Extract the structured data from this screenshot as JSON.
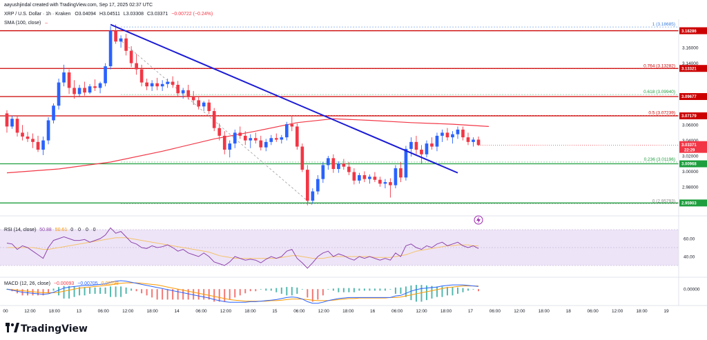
{
  "header": {
    "credit": "aayushjindal created with TradingView.com, Sep 17, 2025 02:37 UTC",
    "symbol": "XRP / U.S. Dollar · 1h · Kraken",
    "open": "O3.04094",
    "high": "H3.04511",
    "low": "L3.03308",
    "close": "C3.03371",
    "change": "−0.00722 (−0.24%)",
    "sma_label": "SMA (100, close)",
    "sma_dot": "–"
  },
  "logo": {
    "text": "TradingView"
  },
  "colors": {
    "up": "#2962ff",
    "down": "#f23645",
    "sma": "#f23645",
    "trend": "#1b1bd6",
    "fib_red": "#cc0000",
    "fib_green": "#1e9e3e",
    "rsi": "#8e44ad",
    "rsi_band": "#e9ddf5",
    "macd_line": "#2962ff",
    "signal_line": "#ff9800"
  },
  "chart_data": [
    {
      "type": "candlestick",
      "interval": "1h",
      "yrange": [
        2.945,
        3.195
      ],
      "y_ticks": [
        2.98,
        3.0,
        3.02,
        3.04,
        3.06,
        3.14,
        3.16
      ],
      "y_tick_labels": [
        "2.98000",
        "3.00000",
        "3.02000",
        "3.04000",
        "3.06000",
        "3.14000",
        "3.16000"
      ],
      "x_tick_labels": [
        "00",
        "12:00",
        "18:00",
        "13",
        "06:00",
        "12:00",
        "18:00",
        "14",
        "06:00",
        "12:00",
        "18:00",
        "15",
        "06:00",
        "12:00",
        "18:00",
        "16",
        "06:00",
        "12:00",
        "18:00",
        "17",
        "06:00",
        "12:00",
        "18:00",
        "18",
        "06:00",
        "12:00",
        "18:00",
        "19"
      ],
      "candles": [
        [
          3.075,
          3.079,
          3.05,
          3.058
        ],
        [
          3.058,
          3.072,
          3.055,
          3.068
        ],
        [
          3.068,
          3.071,
          3.045,
          3.05
        ],
        [
          3.05,
          3.06,
          3.04,
          3.045
        ],
        [
          3.045,
          3.051,
          3.038,
          3.042
        ],
        [
          3.042,
          3.049,
          3.03,
          3.038
        ],
        [
          3.038,
          3.046,
          3.025,
          3.028
        ],
        [
          3.028,
          3.045,
          3.021,
          3.04
        ],
        [
          3.04,
          3.07,
          3.035,
          3.066
        ],
        [
          3.066,
          3.088,
          3.062,
          3.085
        ],
        [
          3.085,
          3.12,
          3.08,
          3.115
        ],
        [
          3.115,
          3.138,
          3.11,
          3.128
        ],
        [
          3.128,
          3.132,
          3.1,
          3.108
        ],
        [
          3.108,
          3.118,
          3.094,
          3.1
        ],
        [
          3.1,
          3.112,
          3.096,
          3.108
        ],
        [
          3.108,
          3.116,
          3.098,
          3.102
        ],
        [
          3.102,
          3.113,
          3.1,
          3.11
        ],
        [
          3.11,
          3.119,
          3.104,
          3.108
        ],
        [
          3.108,
          3.116,
          3.101,
          3.114
        ],
        [
          3.114,
          3.14,
          3.11,
          3.136
        ],
        [
          3.136,
          3.188,
          3.132,
          3.182
        ],
        [
          3.182,
          3.19,
          3.165,
          3.168
        ],
        [
          3.168,
          3.176,
          3.16,
          3.172
        ],
        [
          3.172,
          3.178,
          3.15,
          3.156
        ],
        [
          3.156,
          3.162,
          3.135,
          3.14
        ],
        [
          3.14,
          3.152,
          3.125,
          3.132
        ],
        [
          3.132,
          3.138,
          3.11,
          3.115
        ],
        [
          3.115,
          3.12,
          3.105,
          3.11
        ],
        [
          3.11,
          3.118,
          3.104,
          3.114
        ],
        [
          3.114,
          3.121,
          3.105,
          3.11
        ],
        [
          3.11,
          3.118,
          3.104,
          3.113
        ],
        [
          3.113,
          3.12,
          3.108,
          3.116
        ],
        [
          3.116,
          3.123,
          3.108,
          3.112
        ],
        [
          3.112,
          3.117,
          3.096,
          3.101
        ],
        [
          3.101,
          3.108,
          3.094,
          3.105
        ],
        [
          3.105,
          3.112,
          3.093,
          3.096
        ],
        [
          3.096,
          3.104,
          3.086,
          3.092
        ],
        [
          3.092,
          3.097,
          3.08,
          3.084
        ],
        [
          3.084,
          3.091,
          3.078,
          3.089
        ],
        [
          3.089,
          3.093,
          3.074,
          3.078
        ],
        [
          3.078,
          3.082,
          3.052,
          3.056
        ],
        [
          3.056,
          3.062,
          3.04,
          3.046
        ],
        [
          3.046,
          3.052,
          3.022,
          3.028
        ],
        [
          3.028,
          3.04,
          3.018,
          3.036
        ],
        [
          3.036,
          3.054,
          3.03,
          3.05
        ],
        [
          3.05,
          3.058,
          3.042,
          3.046
        ],
        [
          3.046,
          3.052,
          3.034,
          3.04
        ],
        [
          3.04,
          3.048,
          3.03,
          3.043
        ],
        [
          3.043,
          3.05,
          3.036,
          3.04
        ],
        [
          3.04,
          3.046,
          3.027,
          3.031
        ],
        [
          3.031,
          3.042,
          3.026,
          3.038
        ],
        [
          3.038,
          3.047,
          3.034,
          3.043
        ],
        [
          3.043,
          3.049,
          3.038,
          3.041
        ],
        [
          3.041,
          3.047,
          3.036,
          3.044
        ],
        [
          3.044,
          3.064,
          3.04,
          3.061
        ],
        [
          3.061,
          3.072,
          3.052,
          3.058
        ],
        [
          3.058,
          3.062,
          3.028,
          3.032
        ],
        [
          3.032,
          3.036,
          2.999,
          3.002
        ],
        [
          3.002,
          3.008,
          2.956,
          2.962
        ],
        [
          2.962,
          2.978,
          2.958,
          2.974
        ],
        [
          2.974,
          2.995,
          2.97,
          2.99
        ],
        [
          2.99,
          3.012,
          2.985,
          3.008
        ],
        [
          3.008,
          3.02,
          3.002,
          3.017
        ],
        [
          3.017,
          3.022,
          2.998,
          3.003
        ],
        [
          3.003,
          3.013,
          2.998,
          3.01
        ],
        [
          3.01,
          3.016,
          3.002,
          3.006
        ],
        [
          3.006,
          3.012,
          2.995,
          2.999
        ],
        [
          2.999,
          3.004,
          2.983,
          2.988
        ],
        [
          2.988,
          2.998,
          2.984,
          2.995
        ],
        [
          2.995,
          3.0,
          2.986,
          2.99
        ],
        [
          2.99,
          2.996,
          2.984,
          2.993
        ],
        [
          2.993,
          2.999,
          2.986,
          2.989
        ],
        [
          2.989,
          2.993,
          2.98,
          2.984
        ],
        [
          2.984,
          2.99,
          2.978,
          2.986
        ],
        [
          2.986,
          2.991,
          2.966,
          2.982
        ],
        [
          2.982,
          3.008,
          2.978,
          3.004
        ],
        [
          3.004,
          3.012,
          2.986,
          2.992
        ],
        [
          2.992,
          3.033,
          2.988,
          3.029
        ],
        [
          3.029,
          3.044,
          3.019,
          3.038
        ],
        [
          3.038,
          3.046,
          3.022,
          3.028
        ],
        [
          3.028,
          3.034,
          3.01,
          3.022
        ],
        [
          3.022,
          3.04,
          3.018,
          3.036
        ],
        [
          3.036,
          3.044,
          3.028,
          3.032
        ],
        [
          3.032,
          3.05,
          3.026,
          3.046
        ],
        [
          3.046,
          3.054,
          3.038,
          3.05
        ],
        [
          3.05,
          3.056,
          3.04,
          3.044
        ],
        [
          3.044,
          3.052,
          3.036,
          3.048
        ],
        [
          3.048,
          3.058,
          3.042,
          3.054
        ],
        [
          3.054,
          3.058,
          3.04,
          3.044
        ],
        [
          3.044,
          3.05,
          3.034,
          3.038
        ],
        [
          3.038,
          3.044,
          3.032,
          3.041
        ],
        [
          3.041,
          3.045,
          3.033,
          3.034
        ]
      ],
      "sma_100": [
        [
          0,
          2.998
        ],
        [
          10,
          3.003
        ],
        [
          20,
          3.012
        ],
        [
          30,
          3.026
        ],
        [
          40,
          3.042
        ],
        [
          48,
          3.052
        ],
        [
          56,
          3.063
        ],
        [
          63,
          3.068
        ],
        [
          70,
          3.066
        ],
        [
          78,
          3.063
        ],
        [
          86,
          3.061
        ],
        [
          93,
          3.058
        ]
      ],
      "trend_line": {
        "from": [
          20,
          3.19
        ],
        "to": [
          87,
          2.998
        ]
      },
      "dashed_line": {
        "from": [
          21,
          3.175
        ],
        "to": [
          59,
          2.956
        ]
      },
      "fib_levels": [
        {
          "label": "1 (3.18685)",
          "value": 3.18685,
          "color": "#3b7ddd"
        },
        {
          "label": "0.764 (3.13282)",
          "value": 3.13282,
          "color": "#cc0000"
        },
        {
          "label": "0.618 (3.09940)",
          "value": 3.0994,
          "color": "#1e9e3e"
        },
        {
          "label": "0.5 (3.07239)",
          "value": 3.07239,
          "color": "#cc0000"
        },
        {
          "label": "0.236 (3.01196)",
          "value": 3.01196,
          "color": "#1e9e3e"
        },
        {
          "label": "0 (2.95793)",
          "value": 2.95793,
          "color": "#888888"
        }
      ],
      "h_lines": [
        {
          "value": 3.182,
          "color": "#cc0000",
          "badge": "3.18286"
        },
        {
          "value": 3.1332,
          "color": "#cc0000",
          "badge": "3.13321"
        },
        {
          "value": 3.0968,
          "color": "#cc0000",
          "badge": "3.09677"
        },
        {
          "value": 3.0718,
          "color": "#cc0000",
          "badge": "3.07179"
        },
        {
          "value": 3.0097,
          "color": "#1e9e3e",
          "badge": "3.00968"
        },
        {
          "value": 2.959,
          "color": "#1e9e3e",
          "badge": "2.95903"
        }
      ],
      "price_badge": {
        "value": 3.0337,
        "label": "3.03371",
        "sub": "22:29"
      }
    },
    {
      "type": "line",
      "name": "RSI (14, close)",
      "title": "RSI (14, close)",
      "value_label": "50.88",
      "extra_label": "50.61",
      "zero_labels": [
        "0",
        "0",
        "0",
        "0"
      ],
      "yrange": [
        20,
        80
      ],
      "band": [
        40,
        60
      ],
      "y_ticks": [
        40,
        60
      ],
      "y_tick_labels": [
        "40.00",
        "60.00"
      ],
      "values": [
        55,
        54,
        48,
        52,
        50,
        46,
        42,
        38,
        50,
        58,
        60,
        62,
        60,
        58,
        58,
        59,
        56,
        58,
        60,
        64,
        72,
        66,
        68,
        62,
        56,
        54,
        50,
        49,
        52,
        50,
        51,
        53,
        50,
        46,
        48,
        44,
        42,
        40,
        44,
        40,
        34,
        32,
        30,
        34,
        40,
        38,
        36,
        37,
        36,
        33,
        37,
        40,
        38,
        40,
        46,
        48,
        38,
        33,
        27,
        33,
        40,
        44,
        46,
        40,
        43,
        41,
        38,
        36,
        40,
        38,
        40,
        38,
        36,
        38,
        36,
        44,
        40,
        52,
        54,
        50,
        48,
        52,
        50,
        54,
        56,
        52,
        54,
        56,
        52,
        50,
        52,
        49
      ],
      "ma_values": [
        50,
        50,
        50,
        50,
        50,
        50,
        49,
        48,
        48,
        49,
        50,
        51,
        52,
        53,
        54,
        55,
        56,
        57,
        58,
        59,
        60,
        61,
        61,
        61,
        60,
        59,
        58,
        57,
        56,
        55,
        54,
        53,
        52,
        51,
        50,
        49,
        48,
        47,
        46,
        45,
        43,
        41,
        40,
        39,
        38,
        38,
        38,
        38,
        38,
        38,
        38,
        38,
        38,
        39,
        40,
        41,
        41,
        40,
        39,
        38,
        38,
        38,
        39,
        40,
        40,
        40,
        40,
        40,
        40,
        40,
        40,
        39,
        39,
        39,
        39,
        40,
        41,
        42,
        44,
        46,
        47,
        48,
        49,
        50,
        51,
        52,
        52,
        53,
        53,
        53,
        52,
        52
      ]
    },
    {
      "type": "line",
      "name": "MACD (12, 26, close)",
      "title": "MACD (12, 26, close)",
      "values_labels": [
        "−0.00093",
        "−0.00705",
        "0.00798"
      ],
      "yrange": [
        -0.03,
        0.02
      ],
      "y_ticks": [
        0
      ],
      "y_tick_labels": [
        "0.00000"
      ],
      "macd": [
        0.0,
        -0.002,
        -0.004,
        -0.006,
        -0.007,
        -0.008,
        -0.009,
        -0.01,
        -0.009,
        -0.006,
        -0.002,
        0.002,
        0.004,
        0.005,
        0.006,
        0.007,
        0.007,
        0.008,
        0.009,
        0.01,
        0.013,
        0.015,
        0.016,
        0.015,
        0.013,
        0.011,
        0.009,
        0.007,
        0.005,
        0.003,
        0.001,
        -0.001,
        -0.003,
        -0.005,
        -0.007,
        -0.009,
        -0.011,
        -0.013,
        -0.015,
        -0.017,
        -0.02,
        -0.022,
        -0.024,
        -0.025,
        -0.025,
        -0.025,
        -0.025,
        -0.024,
        -0.024,
        -0.023,
        -0.022,
        -0.021,
        -0.02,
        -0.018,
        -0.016,
        -0.015,
        -0.016,
        -0.019,
        -0.024,
        -0.027,
        -0.027,
        -0.025,
        -0.022,
        -0.02,
        -0.018,
        -0.017,
        -0.016,
        -0.016,
        -0.016,
        -0.016,
        -0.016,
        -0.016,
        -0.016,
        -0.016,
        -0.016,
        -0.013,
        -0.012,
        -0.008,
        -0.004,
        -0.001,
        0.001,
        0.002,
        0.003,
        0.004,
        0.006,
        0.007,
        0.008,
        0.008,
        0.008,
        0.007,
        0.006,
        0.005
      ],
      "signal": [
        0.0,
        -0.001,
        -0.002,
        -0.003,
        -0.004,
        -0.005,
        -0.006,
        -0.007,
        -0.007,
        -0.007,
        -0.006,
        -0.004,
        -0.002,
        0.0,
        0.002,
        0.003,
        0.004,
        0.005,
        0.006,
        0.007,
        0.008,
        0.01,
        0.011,
        0.012,
        0.012,
        0.012,
        0.011,
        0.01,
        0.009,
        0.008,
        0.006,
        0.004,
        0.002,
        0.0,
        -0.002,
        -0.004,
        -0.006,
        -0.008,
        -0.01,
        -0.012,
        -0.014,
        -0.016,
        -0.018,
        -0.02,
        -0.021,
        -0.022,
        -0.023,
        -0.023,
        -0.023,
        -0.023,
        -0.023,
        -0.022,
        -0.022,
        -0.021,
        -0.02,
        -0.019,
        -0.019,
        -0.019,
        -0.02,
        -0.021,
        -0.022,
        -0.022,
        -0.022,
        -0.021,
        -0.02,
        -0.019,
        -0.018,
        -0.018,
        -0.017,
        -0.017,
        -0.017,
        -0.017,
        -0.017,
        -0.017,
        -0.016,
        -0.016,
        -0.015,
        -0.013,
        -0.011,
        -0.009,
        -0.007,
        -0.005,
        -0.003,
        -0.001,
        0.001,
        0.003,
        0.004,
        0.005,
        0.006,
        0.006,
        0.006,
        0.006
      ]
    }
  ]
}
